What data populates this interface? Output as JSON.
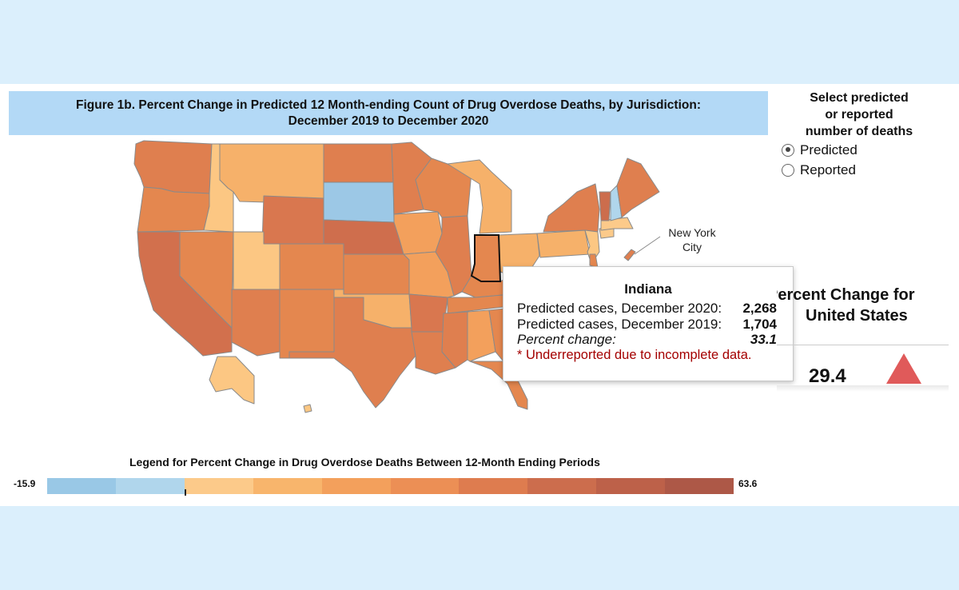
{
  "figure": {
    "title_line1": "Figure 1b. Percent Change in Predicted 12 Month-ending Count of Drug Overdose Deaths, by Jurisdiction:",
    "title_line2": "December 2019 to December 2020"
  },
  "selector": {
    "title_line1": "Select predicted",
    "title_line2": "or reported",
    "title_line3": "number of deaths",
    "options": [
      {
        "label": "Predicted",
        "selected": true
      },
      {
        "label": "Reported",
        "selected": false
      }
    ]
  },
  "us_summary": {
    "title_line1": "Percent Change for",
    "title_line2": "United States",
    "value": "29.4",
    "indicator": "up-triangle-icon",
    "indicator_color": "#e05a5a"
  },
  "map": {
    "annotation_line1": "New York",
    "annotation_line2": "City",
    "highlighted_state": "Indiana"
  },
  "tooltip": {
    "state": "Indiana",
    "row1_label": "Predicted cases, December 2020:",
    "row1_value": "2,268",
    "row2_label": "Predicted cases, December 2019:",
    "row2_value": "1,704",
    "row3_label": "Percent change:",
    "row3_value": "33.1",
    "note": "* Underreported due to incomplete data."
  },
  "legend": {
    "title": "Legend for Percent Change in Drug Overdose Deaths Between 12-Month Ending Periods",
    "min": "-15.9",
    "max": "63.6",
    "colors": [
      "#99c8e6",
      "#b0d6ec",
      "#fcca8a",
      "#f8b56c",
      "#f3a05c",
      "#ec8f55",
      "#de7c4f",
      "#cc6d4d",
      "#bd6149",
      "#ad5847"
    ]
  },
  "colors": {
    "background": "#dbeffc",
    "title_box": "#b3d9f6",
    "note_red": "#a40000"
  }
}
